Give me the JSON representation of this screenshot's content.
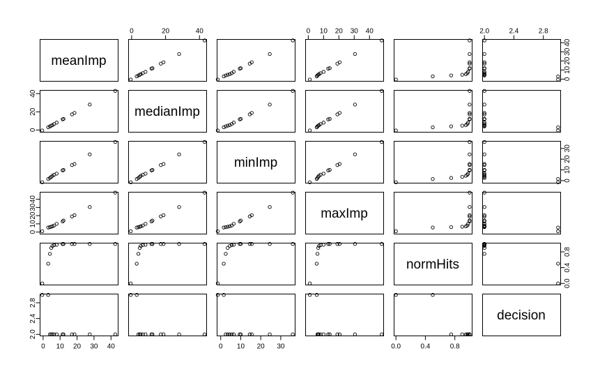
{
  "chart_data": {
    "type": "scatter",
    "subtype": "scatterplot-matrix",
    "variables": [
      "meanImp",
      "medianImp",
      "minImp",
      "maxImp",
      "normHits",
      "decision"
    ],
    "limits": {
      "meanImp": [
        -2,
        44
      ],
      "medianImp": [
        -2,
        44
      ],
      "minImp": [
        -2,
        37
      ],
      "maxImp": [
        -2,
        49
      ],
      "normHits": [
        -0.03,
        1.03
      ],
      "decision": [
        1.97,
        3.03
      ]
    },
    "ticks": {
      "meanImp": [
        "0",
        "10",
        "20",
        "30",
        "40"
      ],
      "medianImp": [
        "0",
        "20",
        "40"
      ],
      "minImp": [
        "0",
        "10",
        "20",
        "30"
      ],
      "maxImp": [
        "0",
        "10",
        "20",
        "30",
        "40"
      ],
      "normHits": [
        "0.0",
        "0.4",
        "0.8"
      ],
      "decision": [
        "2.0",
        "2.4",
        "2.8"
      ]
    },
    "tick_values": {
      "meanImp": [
        0,
        10,
        20,
        30,
        40
      ],
      "medianImp": [
        0,
        20,
        40
      ],
      "minImp": [
        0,
        10,
        20,
        30
      ],
      "maxImp": [
        0,
        10,
        20,
        30,
        40
      ],
      "normHits": [
        0.0,
        0.4,
        0.8
      ],
      "decision": [
        2.0,
        2.4,
        2.8
      ]
    },
    "observations": [
      {
        "meanImp": 42.5,
        "medianImp": 43.0,
        "minImp": 36.0,
        "maxImp": 48.0,
        "normHits": 1.0,
        "decision": 2
      },
      {
        "meanImp": 27.5,
        "medianImp": 28.0,
        "minImp": 24.5,
        "maxImp": 30.5,
        "normHits": 1.0,
        "decision": 2
      },
      {
        "meanImp": 18.5,
        "medianImp": 18.8,
        "minImp": 15.5,
        "maxImp": 20.5,
        "normHits": 1.0,
        "decision": 2
      },
      {
        "meanImp": 17.0,
        "medianImp": 17.2,
        "minImp": 14.5,
        "maxImp": 19.0,
        "normHits": 1.0,
        "decision": 2
      },
      {
        "meanImp": 12.0,
        "medianImp": 12.3,
        "minImp": 10.0,
        "maxImp": 14.0,
        "normHits": 1.0,
        "decision": 2
      },
      {
        "meanImp": 11.5,
        "medianImp": 11.7,
        "minImp": 9.5,
        "maxImp": 13.0,
        "normHits": 1.0,
        "decision": 2
      },
      {
        "meanImp": 8.0,
        "medianImp": 8.2,
        "minImp": 6.5,
        "maxImp": 10.0,
        "normHits": 0.98,
        "decision": 2
      },
      {
        "meanImp": 6.5,
        "medianImp": 6.6,
        "minImp": 5.5,
        "maxImp": 8.0,
        "normHits": 0.97,
        "decision": 2
      },
      {
        "meanImp": 5.5,
        "medianImp": 5.4,
        "minImp": 4.5,
        "maxImp": 7.0,
        "normHits": 0.95,
        "decision": 2
      },
      {
        "meanImp": 4.8,
        "medianImp": 4.8,
        "minImp": 3.5,
        "maxImp": 6.5,
        "normHits": 0.9,
        "decision": 2
      },
      {
        "meanImp": 4.0,
        "medianImp": 4.0,
        "minImp": 2.5,
        "maxImp": 6.0,
        "normHits": 0.75,
        "decision": 2
      },
      {
        "meanImp": 3.0,
        "medianImp": 3.0,
        "minImp": 1.5,
        "maxImp": 5.5,
        "normHits": 0.5,
        "decision": 3
      },
      {
        "meanImp": -0.5,
        "medianImp": -0.5,
        "minImp": -1.5,
        "maxImp": 1.0,
        "normHits": 0.0,
        "decision": 3
      }
    ]
  }
}
